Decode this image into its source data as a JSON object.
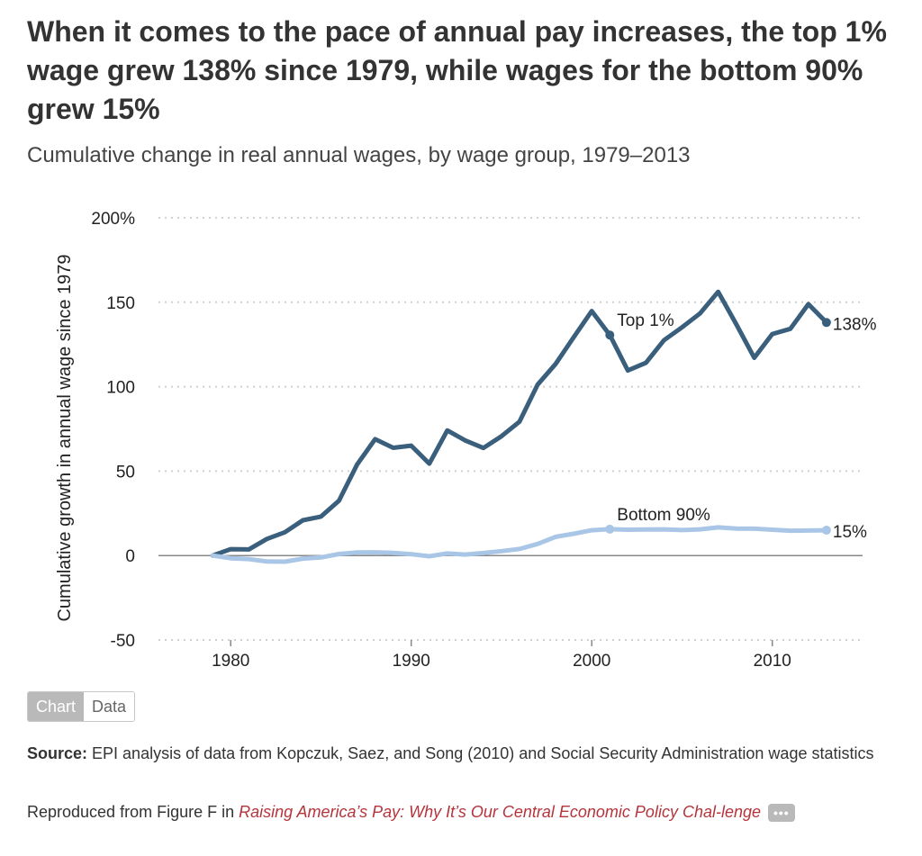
{
  "header": {
    "title": "When it comes to the pace of annual pay increases, the top 1% wage grew 138% since 1979, while wages for the bottom 90% grew 15%",
    "subtitle": "Cumulative change in real annual wages, by wage group, 1979–2013"
  },
  "toggle": {
    "chart_label": "Chart",
    "data_label": "Data"
  },
  "footer": {
    "source_label": "Source:",
    "source_text": " EPI analysis of data from Kopczuk, Saez, and Song (2010) and Social Security Administration wage statistics",
    "repro_prefix": "Reproduced from Figure F in ",
    "repro_link": "Raising America’s Pay: Why It’s Our Central Economic Policy Chal-lenge",
    "more_label": "•••"
  },
  "chart_data": {
    "type": "line",
    "title": "When it comes to the pace of annual pay increases, the top 1% wage grew 138% since 1979, while wages for the bottom 90% grew 15%",
    "subtitle": "Cumulative change in real annual wages, by wage group, 1979–2013",
    "xlabel": "",
    "ylabel": "Cumulative growth in annual wage since 1979",
    "xlim": [
      1976,
      2015
    ],
    "ylim": [
      -50,
      200
    ],
    "xticks": [
      1980,
      1990,
      2000,
      2010
    ],
    "yticks": [
      -50,
      0,
      50,
      100,
      150,
      200
    ],
    "ytick_labels": [
      "-50",
      "0",
      "50",
      "100",
      "150",
      "200%"
    ],
    "grid": true,
    "x": [
      1979,
      1980,
      1981,
      1982,
      1983,
      1984,
      1985,
      1986,
      1987,
      1988,
      1989,
      1990,
      1991,
      1992,
      1993,
      1994,
      1995,
      1996,
      1997,
      1998,
      1999,
      2000,
      2001,
      2002,
      2003,
      2004,
      2005,
      2006,
      2007,
      2008,
      2009,
      2010,
      2011,
      2012,
      2013
    ],
    "series": [
      {
        "name": "Top 1%",
        "color": "#3a5f7d",
        "values": [
          0,
          3.8,
          3.6,
          9.8,
          13.8,
          20.9,
          23.1,
          32.5,
          53.9,
          68.9,
          63.8,
          65.1,
          54.4,
          74.1,
          68.1,
          63.7,
          70.7,
          79.3,
          101.2,
          113.5,
          129.3,
          144.8,
          130.6,
          109.6,
          114.1,
          127.5,
          135.2,
          143.4,
          156.2,
          137.1,
          117.1,
          131.2,
          134.3,
          148.9,
          138.0
        ],
        "highlight_year": 2001,
        "end_label": "138%"
      },
      {
        "name": "Bottom 90%",
        "color": "#a9c6e6",
        "values": [
          0,
          -1.6,
          -2.1,
          -3.5,
          -3.6,
          -1.8,
          -1.1,
          0.9,
          1.8,
          1.9,
          1.6,
          0.8,
          -0.4,
          1.2,
          0.6,
          1.5,
          2.6,
          3.9,
          6.9,
          11.1,
          12.9,
          15.0,
          15.6,
          15.3,
          15.4,
          15.5,
          15.1,
          15.5,
          16.7,
          16.0,
          15.9,
          15.3,
          14.7,
          14.8,
          15.0
        ],
        "highlight_year": 2001,
        "end_label": "15%"
      }
    ],
    "legend": "inline"
  }
}
